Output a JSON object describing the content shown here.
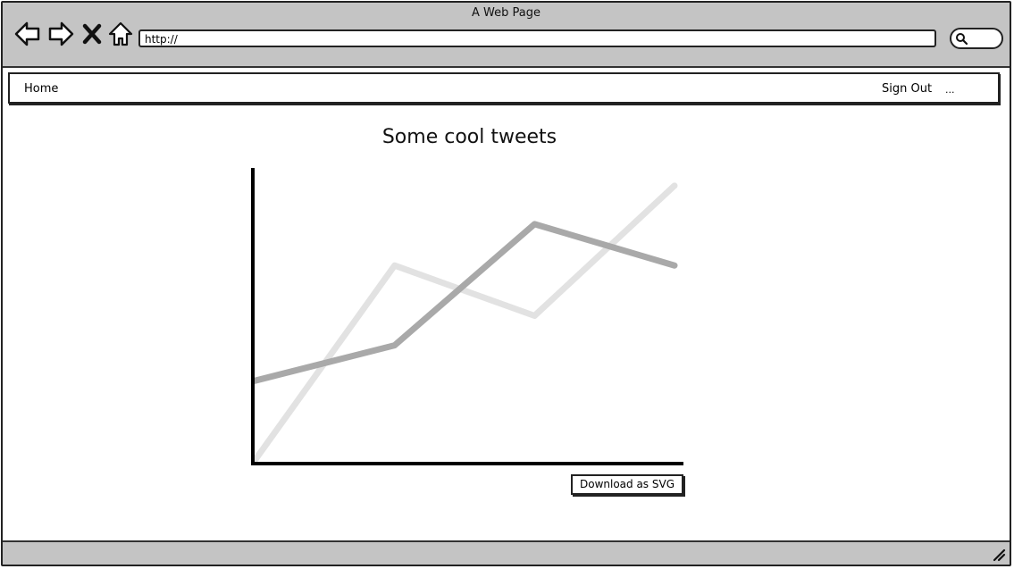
{
  "window": {
    "title": "A Web Page"
  },
  "toolbar": {
    "url": "http://",
    "icons": [
      "back-arrow-icon",
      "forward-arrow-icon",
      "close-x-icon",
      "home-icon",
      "search-icon"
    ]
  },
  "menu": {
    "home": "Home",
    "sign_out": "Sign Out",
    "more": "..."
  },
  "page": {
    "heading": "Some cool tweets",
    "download_label": "Download as SVG"
  },
  "chart_data": {
    "type": "line",
    "title": "",
    "xlabel": "",
    "ylabel": "",
    "x": [
      0,
      1,
      2,
      3
    ],
    "ylim": [
      0,
      100
    ],
    "grid": false,
    "series": [
      {
        "values": [
          28,
          40,
          81,
          67
        ],
        "color": "#a9a9a9"
      },
      {
        "values": [
          1,
          67,
          50,
          94
        ],
        "color": "#e2e2e2"
      }
    ]
  }
}
